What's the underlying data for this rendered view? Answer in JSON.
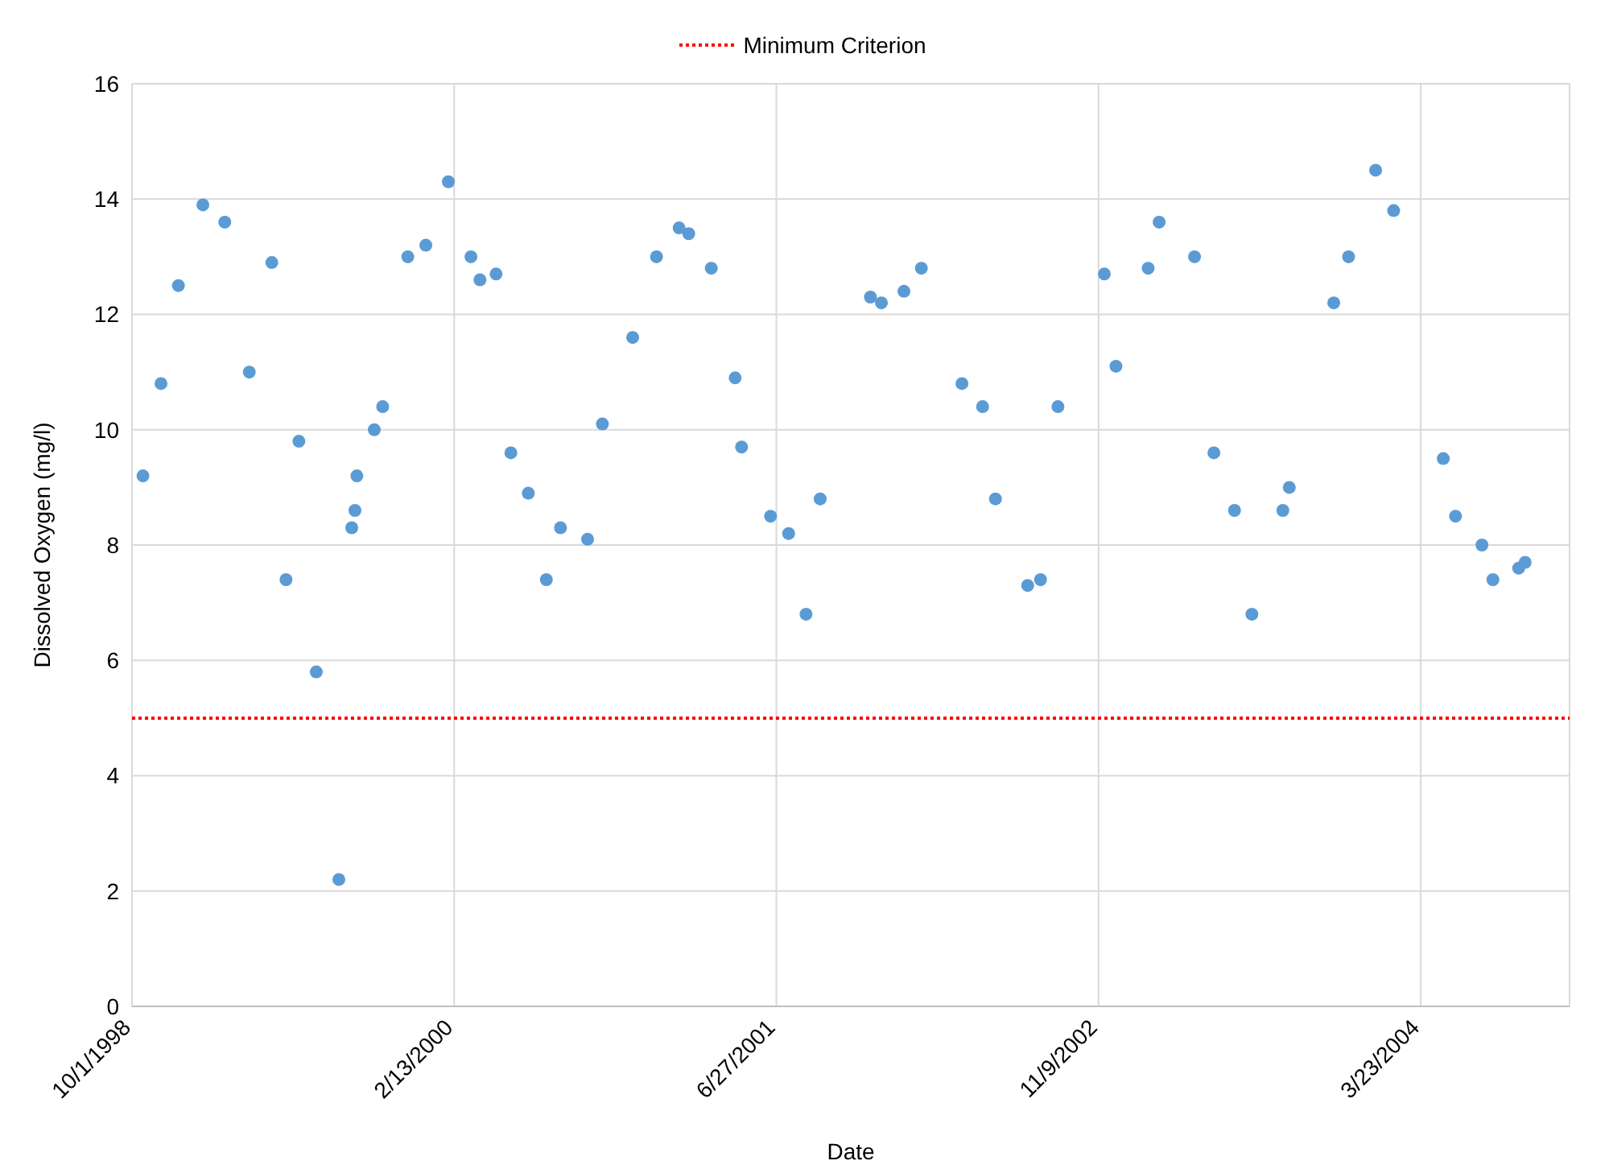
{
  "chart_data": {
    "type": "scatter",
    "xlabel": "Date",
    "ylabel": "Dissolved Oxygen (mg/l)",
    "xlim": [
      "1998-10-01",
      "2004-11-09"
    ],
    "xticks": [
      {
        "value": "1998-10-01",
        "label": "10/1/1998"
      },
      {
        "value": "2000-02-13",
        "label": "2/13/2000"
      },
      {
        "value": "2001-06-27",
        "label": "6/27/2001"
      },
      {
        "value": "2002-11-09",
        "label": "11/9/2002"
      },
      {
        "value": "2004-03-23",
        "label": "3/23/2004"
      }
    ],
    "ylim": [
      0,
      16
    ],
    "yticks": [
      0,
      2,
      4,
      6,
      8,
      10,
      12,
      14,
      16
    ],
    "grid": true,
    "legend": "top",
    "marker": "circle",
    "ref_lines": [
      {
        "axis": "y",
        "value": 5,
        "label": "Minimum Criterion",
        "color": "#ff0000",
        "line_style": "dotted"
      }
    ],
    "series": [
      {
        "color": "#5b9bd5",
        "x": [
          "1998-10-18",
          "1998-11-15",
          "1998-12-12",
          "1999-01-19",
          "1999-02-22",
          "1999-04-01",
          "1999-05-06",
          "1999-05-28",
          "1999-06-17",
          "1999-07-14",
          "1999-08-18",
          "1999-09-07",
          "1999-09-12",
          "1999-09-15",
          "1999-10-12",
          "1999-10-25",
          "1999-12-03",
          "1999-12-31",
          "2000-02-04",
          "2000-03-10",
          "2000-03-24",
          "2000-04-18",
          "2000-05-11",
          "2000-06-07",
          "2000-07-05",
          "2000-07-27",
          "2000-09-07",
          "2000-09-30",
          "2000-11-16",
          "2000-12-23",
          "2001-01-27",
          "2001-02-11",
          "2001-03-18",
          "2001-04-24",
          "2001-05-04",
          "2001-06-18",
          "2001-07-16",
          "2001-08-12",
          "2001-09-03",
          "2001-11-20",
          "2001-12-07",
          "2002-01-11",
          "2002-02-07",
          "2002-04-11",
          "2002-05-13",
          "2002-06-02",
          "2002-07-22",
          "2002-08-11",
          "2002-09-07",
          "2002-11-18",
          "2002-12-06",
          "2003-01-25",
          "2003-02-11",
          "2003-04-07",
          "2003-05-07",
          "2003-06-08",
          "2003-07-05",
          "2003-08-22",
          "2003-09-01",
          "2003-11-09",
          "2003-12-02",
          "2004-01-13",
          "2004-02-10",
          "2004-04-27",
          "2004-05-16",
          "2004-06-26",
          "2004-07-13",
          "2004-08-22",
          "2004-09-01"
        ],
        "values": [
          9.2,
          10.8,
          12.5,
          13.9,
          13.6,
          11.0,
          12.9,
          7.4,
          9.8,
          5.8,
          2.2,
          8.3,
          8.6,
          9.2,
          10.0,
          10.4,
          13.0,
          13.2,
          14.3,
          13.0,
          12.6,
          12.7,
          9.6,
          8.9,
          7.4,
          8.3,
          8.1,
          10.1,
          11.6,
          13.0,
          13.5,
          13.4,
          12.8,
          10.9,
          9.7,
          8.5,
          8.2,
          6.8,
          8.8,
          12.3,
          12.2,
          12.4,
          12.8,
          10.8,
          10.4,
          8.8,
          7.3,
          7.4,
          10.4,
          12.7,
          11.1,
          12.8,
          13.6,
          13.0,
          9.6,
          8.6,
          6.8,
          8.6,
          9.0,
          12.2,
          13.0,
          14.5,
          13.8,
          9.5,
          8.5,
          8.0,
          7.4,
          7.6,
          7.7
        ]
      }
    ]
  }
}
